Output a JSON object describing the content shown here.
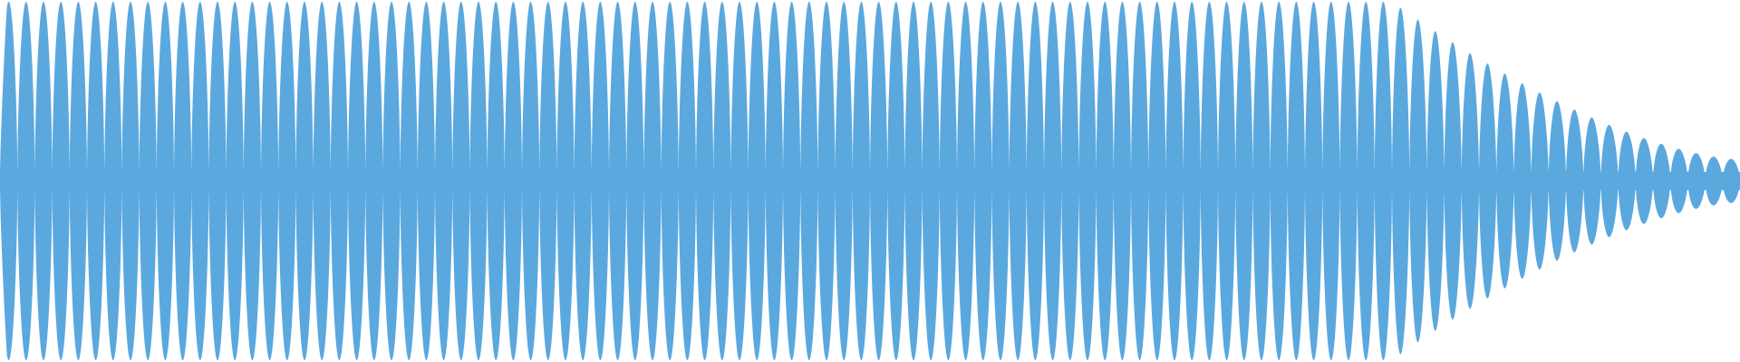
{
  "waveform": {
    "color": "#5ba8df",
    "background": "#ffffff",
    "shape": "sinusoidal oscillation with full amplitude for most of the span, decaying toward the right end",
    "amplitude_profile": {
      "sustain_fraction": 0.8,
      "end_level": 0.12
    },
    "cycles": 100
  }
}
